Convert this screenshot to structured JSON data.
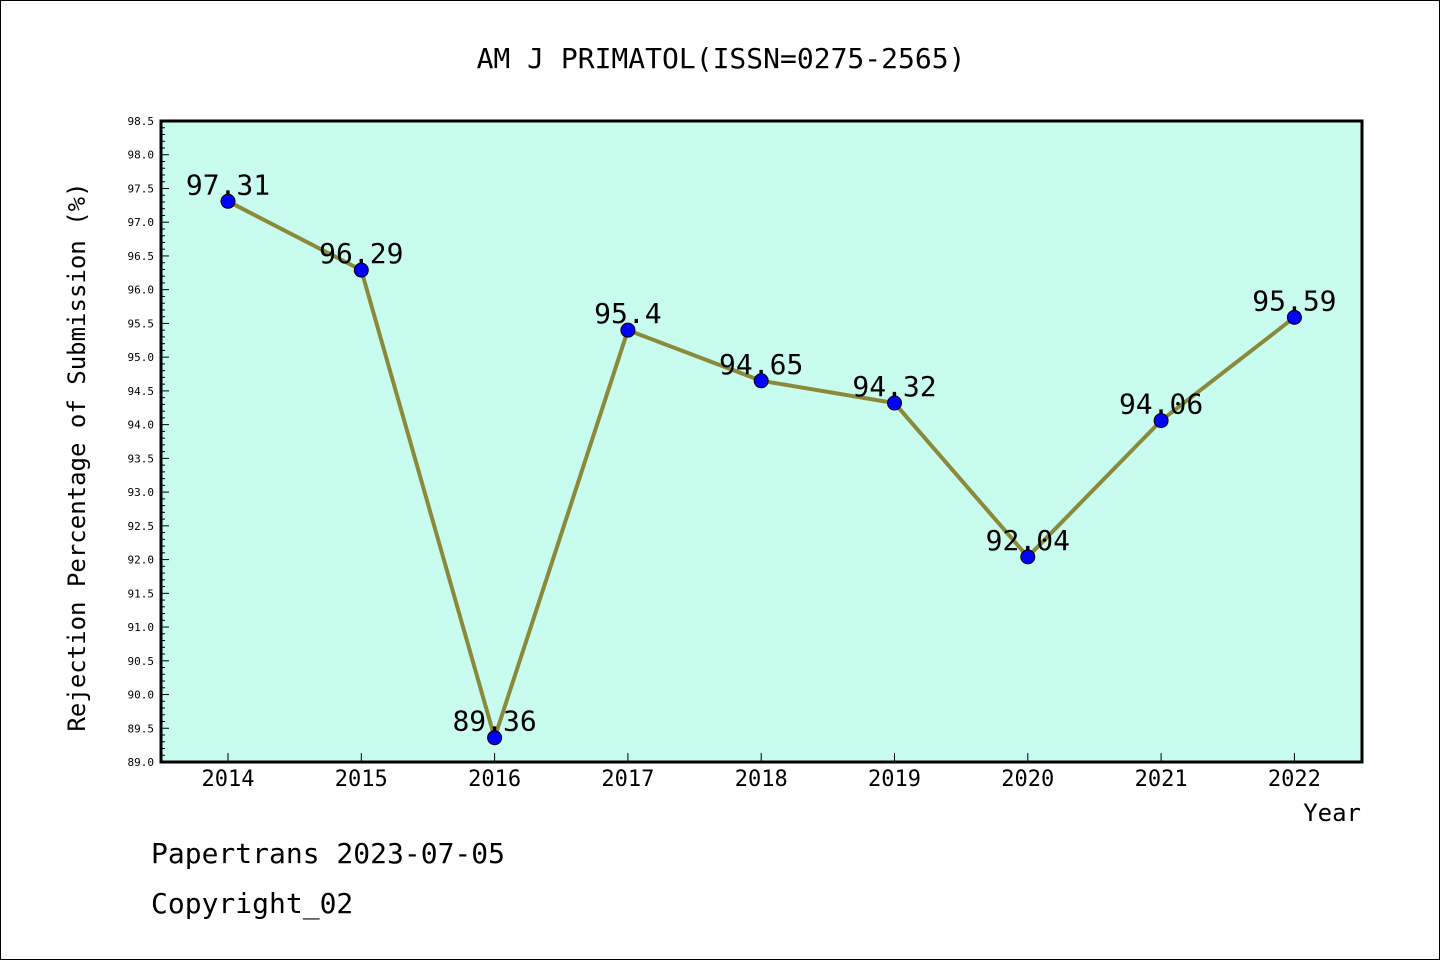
{
  "chart_data": {
    "type": "line",
    "title": "AM J PRIMATOL(ISSN=0275-2565)",
    "xlabel": "Year",
    "ylabel": "Rejection Percentage of Submission (%)",
    "categories": [
      "2014",
      "2015",
      "2016",
      "2017",
      "2018",
      "2019",
      "2020",
      "2021",
      "2022"
    ],
    "series": [
      {
        "values": [
          97.31,
          96.29,
          89.36,
          95.4,
          94.65,
          94.32,
          92.04,
          94.06,
          95.59
        ],
        "labels": [
          "97.31",
          "96.29",
          "89.36",
          "95.4",
          "94.65",
          "94.32",
          "92.04",
          "94.06",
          "95.59"
        ]
      }
    ],
    "ylim": [
      89.0,
      98.5
    ],
    "yticks": [
      "89.0",
      "89.5",
      "90.0",
      "90.5",
      "91.0",
      "91.5",
      "92.0",
      "92.5",
      "93.0",
      "93.5",
      "94.0",
      "94.5",
      "95.0",
      "95.5",
      "96.0",
      "96.5",
      "97.0",
      "97.5",
      "98.0",
      "98.5"
    ],
    "grid": false,
    "colors": {
      "plot_background": "#c8fcee",
      "line": "#8b8a3a",
      "marker": "#0000ff"
    }
  },
  "footer": {
    "line1": "Papertrans 2023-07-05",
    "line2": "Copyright_02"
  }
}
